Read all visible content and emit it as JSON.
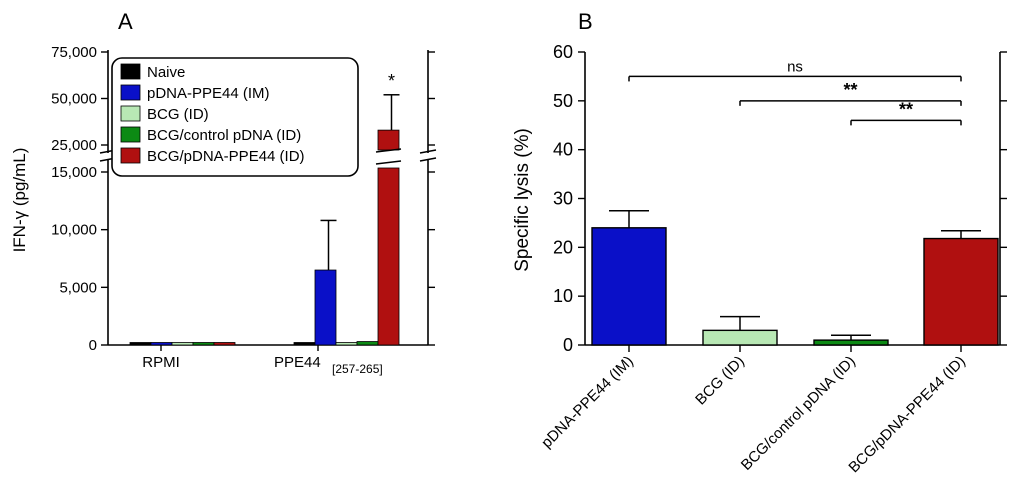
{
  "colors": {
    "naive": "#000000",
    "pdna": "#0a10c8",
    "bcg": "#b8e8b4",
    "bcg_ctrl": "#0c8a14",
    "bcg_pdna": "#b01010"
  },
  "chart_data": [
    {
      "panel": "A",
      "type": "bar",
      "title": "",
      "ylabel": "IFN-γ (pg/mL)",
      "xlabel": "",
      "categories": [
        "RPMI",
        "PPE44"
      ],
      "category_suffix": [
        "",
        "[257-265]"
      ],
      "broken_axis": {
        "lower_range": [
          0,
          15000
        ],
        "upper_range": [
          25000,
          75000
        ],
        "lower_ticks": [
          0,
          5000,
          10000,
          15000
        ],
        "lower_tick_labels": [
          "0",
          "5,000",
          "10,000",
          "15,000"
        ],
        "upper_ticks": [
          25000,
          50000,
          75000
        ],
        "upper_tick_labels": [
          "25,000",
          "50,000",
          "75,000"
        ]
      },
      "series": [
        {
          "name": "Naive",
          "color_key": "naive",
          "values": [
            200,
            50
          ],
          "errors": [
            0,
            0
          ]
        },
        {
          "name": "pDNA-PPE44 (IM)",
          "color_key": "pdna",
          "values": [
            200,
            6500
          ],
          "errors": [
            0,
            4300
          ]
        },
        {
          "name": "BCG (ID)",
          "color_key": "bcg",
          "values": [
            80,
            40
          ],
          "errors": [
            0,
            0
          ]
        },
        {
          "name": "BCG/control pDNA (ID)",
          "color_key": "bcg_ctrl",
          "values": [
            60,
            300
          ],
          "errors": [
            0,
            0
          ]
        },
        {
          "name": "BCG/pDNA-PPE44 (ID)",
          "color_key": "bcg_pdna",
          "values": [
            30,
            33000
          ],
          "errors": [
            0,
            19000
          ]
        }
      ],
      "annotations": [
        {
          "text": "*",
          "category": "PPE44",
          "series": "BCG/pDNA-PPE44 (ID)"
        }
      ],
      "legend": "top-left"
    },
    {
      "panel": "B",
      "type": "bar",
      "title": "",
      "ylabel": "Specific lysis (%)",
      "xlabel": "",
      "ylim": [
        0,
        60
      ],
      "yticks": [
        0,
        10,
        20,
        30,
        40,
        50,
        60
      ],
      "categories": [
        "pDNA-PPE44 (IM)",
        "BCG (ID)",
        "BCG/control pDNA (ID)",
        "BCG/pDNA-PPE44 (ID)"
      ],
      "color_keys": [
        "pdna",
        "bcg",
        "bcg_ctrl",
        "bcg_pdna"
      ],
      "values": [
        24,
        3,
        1,
        21.8
      ],
      "errors": [
        3.5,
        2.8,
        1,
        1.6
      ],
      "comparisons": [
        {
          "from": 0,
          "to": 3,
          "label": "ns",
          "y": 55
        },
        {
          "from": 1,
          "to": 3,
          "label": "**",
          "y": 50
        },
        {
          "from": 2,
          "to": 3,
          "label": "**",
          "y": 46
        }
      ]
    }
  ]
}
